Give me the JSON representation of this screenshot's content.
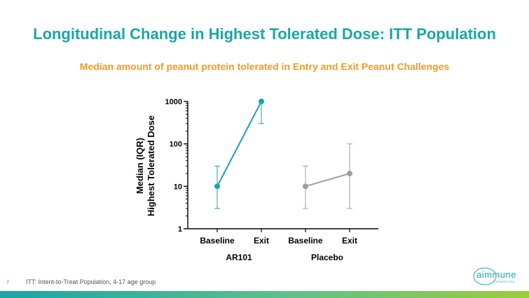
{
  "slide": {
    "title": "Longitudinal Change in Highest Tolerated Dose: ITT Population",
    "subtitle": "Median amount of peanut protein tolerated in Entry and Exit Peanut Challenges",
    "page_number": "7",
    "footnote": "ITT: Intent-to-Treat Population, 4-17 age group",
    "logo_text": "aimmune",
    "logo_subtext": "THERAPEUTICS"
  },
  "colors": {
    "title": "#1aa6a6",
    "subtitle": "#f39a2b",
    "ar101": "#1aa6a6",
    "placebo": "#9e9e9e"
  },
  "chart_data": {
    "type": "line",
    "ylabel": [
      "Median (IQR)",
      "Highest Tolerated Dose"
    ],
    "yscale": "log",
    "ylim": [
      1,
      1000
    ],
    "yticks": [
      {
        "value": 1,
        "label": "1"
      },
      {
        "value": 10,
        "label": "10"
      },
      {
        "value": 100,
        "label": "100"
      },
      {
        "value": 1000,
        "label": "1000"
      }
    ],
    "groups": [
      {
        "name": "AR101",
        "color": "#1aa6a6",
        "categories": [
          "Baseline",
          "Exit"
        ],
        "median": [
          10,
          1000
        ],
        "iqr_low": [
          3,
          300
        ],
        "iqr_high": [
          30,
          1000
        ]
      },
      {
        "name": "Placebo",
        "color": "#9e9e9e",
        "categories": [
          "Baseline",
          "Exit"
        ],
        "median": [
          10,
          20
        ],
        "iqr_low": [
          3,
          3
        ],
        "iqr_high": [
          30,
          100
        ]
      }
    ]
  }
}
